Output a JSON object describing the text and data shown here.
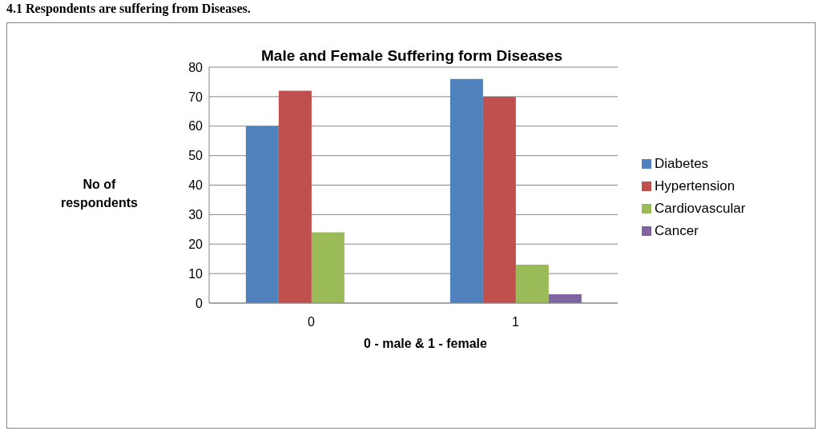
{
  "chart_data": {
    "type": "bar",
    "title": "Male and Female Suffering form Diseases",
    "xlabel": "0 - male & 1 - female",
    "ylabel": "No of respondents",
    "annotations": [
      "4.1 Respondents are suffering from Diseases."
    ],
    "categories": [
      "0",
      "1"
    ],
    "series": [
      {
        "name": "Diabetes",
        "color": "#4f81bd",
        "values": [
          60,
          76
        ]
      },
      {
        "name": "Hypertension",
        "color": "#c0504d",
        "values": [
          72,
          70
        ]
      },
      {
        "name": "Cardiovascular",
        "color": "#9bbb59",
        "values": [
          24,
          13
        ]
      },
      {
        "name": "Cancer",
        "color": "#8064a2",
        "values": [
          0,
          3
        ]
      }
    ],
    "ylim": [
      0,
      80
    ],
    "yticks": [
      0,
      10,
      20,
      30,
      40,
      50,
      60,
      70,
      80
    ],
    "grid": "y",
    "legend": "right"
  }
}
